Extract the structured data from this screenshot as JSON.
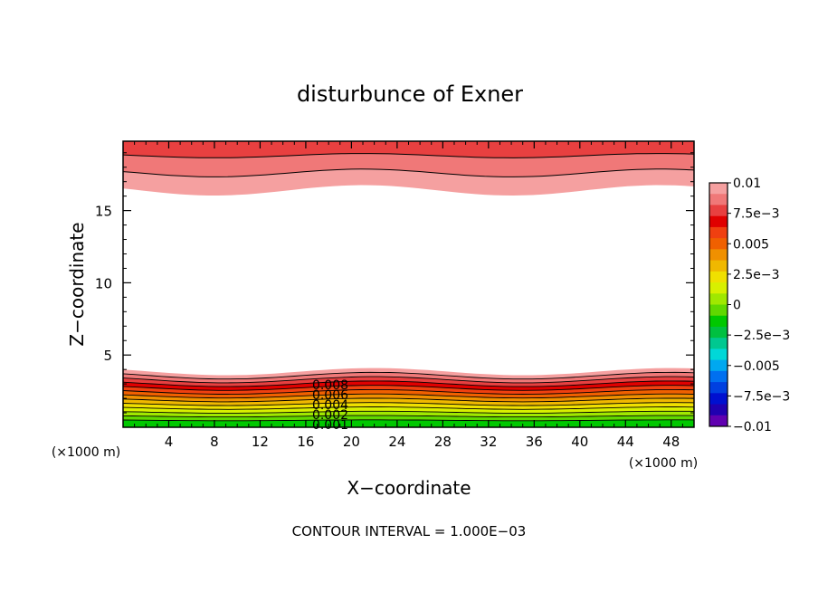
{
  "chart_data": {
    "type": "contour",
    "title": "disturbunce of Exner",
    "xlabel": "X−coordinate",
    "ylabel": "Z−coordinate",
    "x_unit_left": "(×1000 m)",
    "x_unit_right": "(×1000 m)",
    "footer": "CONTOUR INTERVAL = 1.000E−03",
    "xlim": [
      0,
      50
    ],
    "ylim": [
      0,
      19.8
    ],
    "x_ticks": [
      4,
      8,
      12,
      16,
      20,
      24,
      28,
      32,
      36,
      40,
      44,
      48
    ],
    "x_tick_labels": [
      "4",
      "8",
      "12",
      "16",
      "20",
      "24",
      "28",
      "32",
      "36",
      "40",
      "44",
      "48"
    ],
    "y_ticks": [
      5,
      10,
      15
    ],
    "y_tick_labels": [
      "5",
      "10",
      "15"
    ],
    "colorbar": {
      "ticks": [
        0.01,
        0.0075,
        0.005,
        0.0025,
        0,
        -0.0025,
        -0.005,
        -0.0075,
        -0.01
      ],
      "tick_labels": [
        "0.01",
        "7.5e−3",
        "0.005",
        "2.5e−3",
        "0",
        "−2.5e−3",
        "−0.005",
        "−7.5e−3",
        "−0.01"
      ],
      "level_colors": [
        "#f5a0a0",
        "#f07878",
        "#e84040",
        "#e00000",
        "#f04010",
        "#f06000",
        "#f09000",
        "#f0b800",
        "#f0e000",
        "#d8f000",
        "#a0e800",
        "#60d800",
        "#00c800",
        "#00c040",
        "#00c890",
        "#00d8d8",
        "#00a8f0",
        "#0070f0",
        "#0040e0",
        "#0010d0",
        "#2000b0",
        "#6000b0"
      ]
    },
    "contour_labels": [
      "0.008",
      "0.006",
      "0.004",
      "0.002",
      "0.001"
    ]
  }
}
